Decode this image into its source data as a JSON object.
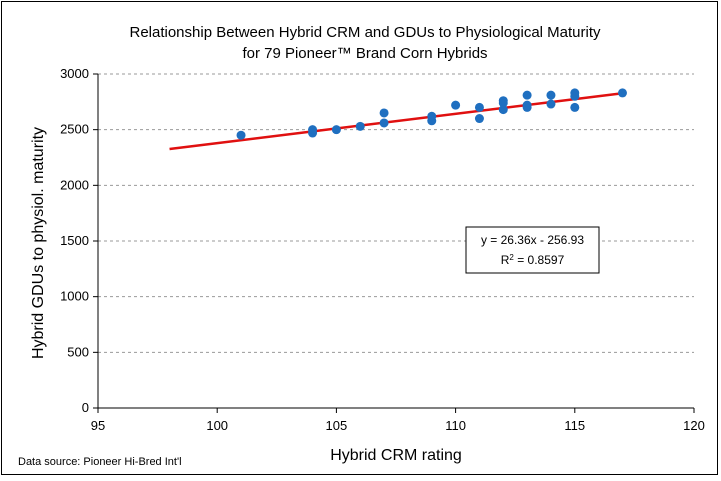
{
  "chart_data": {
    "type": "scatter",
    "title_line1": "Relationship Between Hybrid CRM and GDUs to Physiological Maturity",
    "title_line2": "for 79 Pioneer™ Brand Corn Hybrids",
    "xlabel": "Hybrid CRM rating",
    "ylabel": "Hybrid GDUs to physiol. maturity",
    "xlim": [
      95,
      120
    ],
    "ylim": [
      0,
      3000
    ],
    "xticks": [
      95,
      100,
      105,
      110,
      115,
      120
    ],
    "yticks": [
      0,
      500,
      1000,
      1500,
      2000,
      2500,
      3000
    ],
    "grid": "horizontal dashed",
    "points": [
      [
        101,
        2450
      ],
      [
        104,
        2470
      ],
      [
        104,
        2500
      ],
      [
        105,
        2500
      ],
      [
        106,
        2530
      ],
      [
        107,
        2560
      ],
      [
        107,
        2650
      ],
      [
        109,
        2580
      ],
      [
        109,
        2620
      ],
      [
        110,
        2720
      ],
      [
        111,
        2600
      ],
      [
        111,
        2700
      ],
      [
        112,
        2680
      ],
      [
        112,
        2740
      ],
      [
        112,
        2760
      ],
      [
        113,
        2700
      ],
      [
        113,
        2720
      ],
      [
        113,
        2810
      ],
      [
        114,
        2730
      ],
      [
        114,
        2810
      ],
      [
        115,
        2700
      ],
      [
        115,
        2800
      ],
      [
        115,
        2830
      ],
      [
        117,
        2830
      ]
    ],
    "trendline": {
      "slope": 26.36,
      "intercept": -256.93,
      "x_range": [
        98,
        117
      ]
    },
    "equation_text": "y = 26.36x - 256.93",
    "r2_prefix": "R",
    "r2_sup": "2",
    "r2_value": " = 0.8597",
    "source_note": "Data source: Pioneer Hi-Bred Int'l",
    "colors": {
      "points": "#1f6fc0",
      "trendline": "#e01010",
      "grid": "#9a9a9a",
      "axis": "#000000"
    }
  }
}
